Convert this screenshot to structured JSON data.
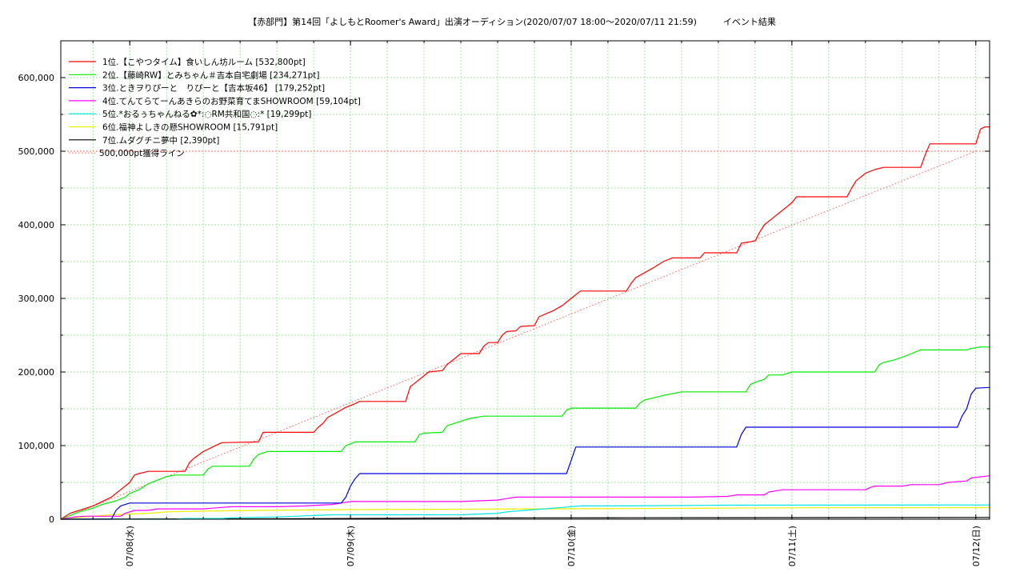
{
  "chart_data": {
    "type": "line",
    "title": "【赤部門】第14回「よしもとRoomer's Award」出演オーディション(2020/07/07 18:00〜2020/07/11 21:59)　　　イベント結果",
    "xlabel": "",
    "ylabel": "",
    "x_unit": "hours since 2020/07/07 18:00",
    "xlim": [
      -1.5,
      99.5
    ],
    "ylim": [
      0,
      650000
    ],
    "yticks": [
      0,
      100000,
      200000,
      300000,
      400000,
      500000,
      600000
    ],
    "ytick_labels": [
      "0",
      "100,000",
      "200,000",
      "300,000",
      "400,000",
      "500,000",
      "600,000"
    ],
    "xticks": [
      6,
      30,
      54,
      78,
      98
    ],
    "xtick_labels": [
      "07/08(水)",
      "07/09(木)",
      "07/10(金)",
      "07/11(土)",
      "07/12(日)"
    ],
    "grid": true,
    "legend_position": "top-left",
    "series": [
      {
        "name": "1位.【こやつタイム】食いしん坊ルーム [532,800pt]",
        "color": "#ff0000",
        "points": [
          [
            -1.5,
            0
          ],
          [
            -0.5,
            8000
          ],
          [
            0.5,
            12000
          ],
          [
            2,
            18000
          ],
          [
            3,
            24000
          ],
          [
            4,
            30000
          ],
          [
            5,
            40000
          ],
          [
            6,
            50000
          ],
          [
            6.5,
            60000
          ],
          [
            7,
            62000
          ],
          [
            8,
            65000
          ],
          [
            12,
            65000
          ],
          [
            12.5,
            77000
          ],
          [
            13,
            83000
          ],
          [
            14,
            92000
          ],
          [
            15,
            98000
          ],
          [
            16,
            104000
          ],
          [
            20,
            105000
          ],
          [
            20.5,
            118000
          ],
          [
            26,
            118000
          ],
          [
            26.5,
            125000
          ],
          [
            27,
            130000
          ],
          [
            27.5,
            138000
          ],
          [
            28.5,
            145000
          ],
          [
            29.5,
            152000
          ],
          [
            30.5,
            157000
          ],
          [
            31,
            160000
          ],
          [
            36,
            160000
          ],
          [
            36.5,
            180000
          ],
          [
            37,
            185000
          ],
          [
            38,
            195000
          ],
          [
            38.5,
            200000
          ],
          [
            40,
            202000
          ],
          [
            40.5,
            210000
          ],
          [
            41.5,
            220000
          ],
          [
            42,
            225000
          ],
          [
            44,
            225000
          ],
          [
            44.5,
            235000
          ],
          [
            45,
            240000
          ],
          [
            46,
            240000
          ],
          [
            46.5,
            250000
          ],
          [
            47,
            255000
          ],
          [
            48,
            256000
          ],
          [
            48.5,
            262000
          ],
          [
            50,
            263000
          ],
          [
            50.5,
            275000
          ],
          [
            52,
            283000
          ],
          [
            53,
            290000
          ],
          [
            54,
            300000
          ],
          [
            54.5,
            305000
          ],
          [
            55,
            310000
          ],
          [
            60,
            310000
          ],
          [
            60.5,
            320000
          ],
          [
            61,
            328000
          ],
          [
            62,
            335000
          ],
          [
            63,
            342000
          ],
          [
            64,
            350000
          ],
          [
            65,
            355000
          ],
          [
            68,
            355000
          ],
          [
            68.5,
            362000
          ],
          [
            72,
            362000
          ],
          [
            72.5,
            375000
          ],
          [
            74,
            378000
          ],
          [
            74.5,
            390000
          ],
          [
            75,
            400000
          ],
          [
            76,
            410000
          ],
          [
            77,
            420000
          ],
          [
            78,
            430000
          ],
          [
            78.5,
            438000
          ],
          [
            84,
            438000
          ],
          [
            84.5,
            450000
          ],
          [
            85,
            460000
          ],
          [
            86,
            470000
          ],
          [
            87,
            475000
          ],
          [
            88,
            478000
          ],
          [
            92,
            478000
          ],
          [
            92.5,
            495000
          ],
          [
            93,
            510000
          ],
          [
            98,
            510000
          ],
          [
            98.5,
            530000
          ],
          [
            99,
            533000
          ],
          [
            99.5,
            533000
          ]
        ]
      },
      {
        "name": "2位.【藤崎RW】とみちゃん＃吉本自宅劇場 [234,271pt]",
        "color": "#00ee00",
        "points": [
          [
            -1.5,
            0
          ],
          [
            -0.5,
            5000
          ],
          [
            0.5,
            10000
          ],
          [
            2,
            15000
          ],
          [
            3,
            20000
          ],
          [
            4.5,
            25000
          ],
          [
            5.5,
            30000
          ],
          [
            6,
            35000
          ],
          [
            7,
            40000
          ],
          [
            8,
            48000
          ],
          [
            9,
            53000
          ],
          [
            10,
            58000
          ],
          [
            11,
            60000
          ],
          [
            14,
            60000
          ],
          [
            14.5,
            68000
          ],
          [
            15,
            72000
          ],
          [
            19,
            72000
          ],
          [
            19.5,
            82000
          ],
          [
            20,
            88000
          ],
          [
            21,
            92000
          ],
          [
            29,
            92000
          ],
          [
            29.5,
            100000
          ],
          [
            30.5,
            105000
          ],
          [
            37,
            105000
          ],
          [
            37.5,
            115000
          ],
          [
            38,
            117000
          ],
          [
            40,
            118000
          ],
          [
            40.5,
            127000
          ],
          [
            42,
            133000
          ],
          [
            43,
            137000
          ],
          [
            44.5,
            140000
          ],
          [
            53,
            140000
          ],
          [
            53.5,
            148000
          ],
          [
            54,
            151000
          ],
          [
            61,
            151000
          ],
          [
            61.5,
            158000
          ],
          [
            62,
            162000
          ],
          [
            63,
            165000
          ],
          [
            64,
            168000
          ],
          [
            66,
            173000
          ],
          [
            73,
            173000
          ],
          [
            73.5,
            183000
          ],
          [
            74,
            186000
          ],
          [
            75,
            190000
          ],
          [
            75.5,
            196000
          ],
          [
            77,
            196000
          ],
          [
            78,
            200000
          ],
          [
            87,
            200000
          ],
          [
            87.5,
            210000
          ],
          [
            88,
            213000
          ],
          [
            89,
            216000
          ],
          [
            90,
            220000
          ],
          [
            91,
            225000
          ],
          [
            92,
            230000
          ],
          [
            97,
            230000
          ],
          [
            97.5,
            232000
          ],
          [
            98.5,
            234000
          ],
          [
            99.5,
            234000
          ]
        ]
      },
      {
        "name": "3位.ときヲりぴーと　りぴーと【吉本坂46】 [179,252pt]",
        "color": "#0000dd",
        "points": [
          [
            -1.5,
            0
          ],
          [
            4,
            0
          ],
          [
            4.5,
            12000
          ],
          [
            5,
            18000
          ],
          [
            6,
            22000
          ],
          [
            29,
            22000
          ],
          [
            29.5,
            30000
          ],
          [
            30,
            45000
          ],
          [
            30.5,
            55000
          ],
          [
            31,
            62000
          ],
          [
            53.5,
            62000
          ],
          [
            54,
            80000
          ],
          [
            54.5,
            98000
          ],
          [
            72,
            98000
          ],
          [
            72.5,
            115000
          ],
          [
            73,
            125000
          ],
          [
            96,
            125000
          ],
          [
            96.5,
            140000
          ],
          [
            97,
            150000
          ],
          [
            97.5,
            170000
          ],
          [
            98,
            178000
          ],
          [
            99.5,
            179000
          ]
        ]
      },
      {
        "name": "4位.てんてらてーんあきらのお野菜育てまSHOWROOM [59,104pt]",
        "color": "#ff00ff",
        "points": [
          [
            -1.5,
            0
          ],
          [
            0,
            3000
          ],
          [
            1,
            4000
          ],
          [
            5,
            4000
          ],
          [
            5.5,
            8000
          ],
          [
            6,
            10000
          ],
          [
            6.5,
            12000
          ],
          [
            8,
            12000
          ],
          [
            9,
            14000
          ],
          [
            14,
            14000
          ],
          [
            15,
            15000
          ],
          [
            16,
            16000
          ],
          [
            17,
            17000
          ],
          [
            22,
            17000
          ],
          [
            25,
            18000
          ],
          [
            28,
            20000
          ],
          [
            29,
            22000
          ],
          [
            30,
            24000
          ],
          [
            42,
            24000
          ],
          [
            46,
            26000
          ],
          [
            47,
            28000
          ],
          [
            48,
            30000
          ],
          [
            67,
            30000
          ],
          [
            71,
            31000
          ],
          [
            72,
            33000
          ],
          [
            75,
            33000
          ],
          [
            75.5,
            37000
          ],
          [
            77,
            40000
          ],
          [
            86,
            40000
          ],
          [
            86.5,
            43000
          ],
          [
            87,
            45000
          ],
          [
            90,
            45000
          ],
          [
            91,
            47000
          ],
          [
            94,
            47000
          ],
          [
            95,
            50000
          ],
          [
            97,
            52000
          ],
          [
            97.5,
            56000
          ],
          [
            99.5,
            59000
          ]
        ]
      },
      {
        "name": "5位.*おるぅちゃんねる✿*:◌RM共和国◌:* [19,299pt]",
        "color": "#00e5e5",
        "points": [
          [
            -1.5,
            0
          ],
          [
            11,
            0
          ],
          [
            12,
            1000
          ],
          [
            16,
            1000
          ],
          [
            17,
            2000
          ],
          [
            22,
            3000
          ],
          [
            24,
            4000
          ],
          [
            26,
            5000
          ],
          [
            28,
            6000
          ],
          [
            42,
            6000
          ],
          [
            46,
            8000
          ],
          [
            47,
            10000
          ],
          [
            49,
            12000
          ],
          [
            51,
            14000
          ],
          [
            53,
            16000
          ],
          [
            55,
            18000
          ],
          [
            60,
            18000
          ],
          [
            70,
            19000
          ],
          [
            99.5,
            19300
          ]
        ]
      },
      {
        "name": "6位.福神よしきの懸SHOWROOM [15,791pt]",
        "color": "#eeee00",
        "points": [
          [
            -1.5,
            0
          ],
          [
            0,
            2000
          ],
          [
            2,
            4000
          ],
          [
            4,
            6000
          ],
          [
            6,
            7000
          ],
          [
            8,
            8000
          ],
          [
            10,
            10000
          ],
          [
            14,
            11000
          ],
          [
            20,
            12000
          ],
          [
            30,
            13000
          ],
          [
            40,
            13500
          ],
          [
            50,
            14000
          ],
          [
            60,
            14500
          ],
          [
            70,
            15000
          ],
          [
            80,
            15500
          ],
          [
            99.5,
            15800
          ]
        ]
      },
      {
        "name": "7位.ムダグチニ夢中 [2,390pt]",
        "color": "#000000",
        "points": [
          [
            -1.5,
            0
          ],
          [
            20,
            500
          ],
          [
            30,
            1000
          ],
          [
            40,
            1500
          ],
          [
            50,
            1800
          ],
          [
            60,
            2000
          ],
          [
            70,
            2100
          ],
          [
            80,
            2200
          ],
          [
            90,
            2300
          ],
          [
            99.5,
            2390
          ]
        ]
      }
    ],
    "reference_line": {
      "name": "500,000pt獲得ライン",
      "color": "#ff3333",
      "points": [
        [
          -1.5,
          0
        ],
        [
          98,
          500000
        ]
      ],
      "horizontal_value": 500000
    }
  }
}
